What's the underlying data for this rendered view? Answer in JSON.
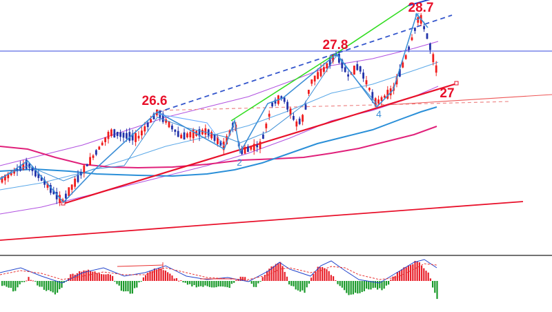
{
  "chart_data": {
    "type": "candlestick",
    "grid": false,
    "price_labels": [
      {
        "text": "26.6",
        "color": "#e8102a"
      },
      {
        "text": "27.8",
        "color": "#e8102a"
      },
      {
        "text": "28.7",
        "color": "#e8102a"
      },
      {
        "text": "27",
        "color": "#e8102a"
      }
    ],
    "wave_labels": [
      {
        "text": "2",
        "color": "#3d8fd6"
      },
      {
        "text": "4",
        "color": "#3d8fd6"
      },
      {
        "text": "5",
        "color": "#3d8fd6"
      }
    ],
    "colors": {
      "up_candle": "#ef1c1c",
      "down_candle": "#2233aa",
      "wave_line": "#3d8fd6",
      "trend_line": "#e8102a",
      "channel_line": "#3355cc",
      "green_line": "#33dd22",
      "ma_fast": "#2a8fd8",
      "ma_slow": "#e0207a",
      "band": "#b050e0",
      "horizontal": "#3344dd",
      "macd_up": "#e8202a",
      "macd_down": "#1a9a2a"
    }
  }
}
